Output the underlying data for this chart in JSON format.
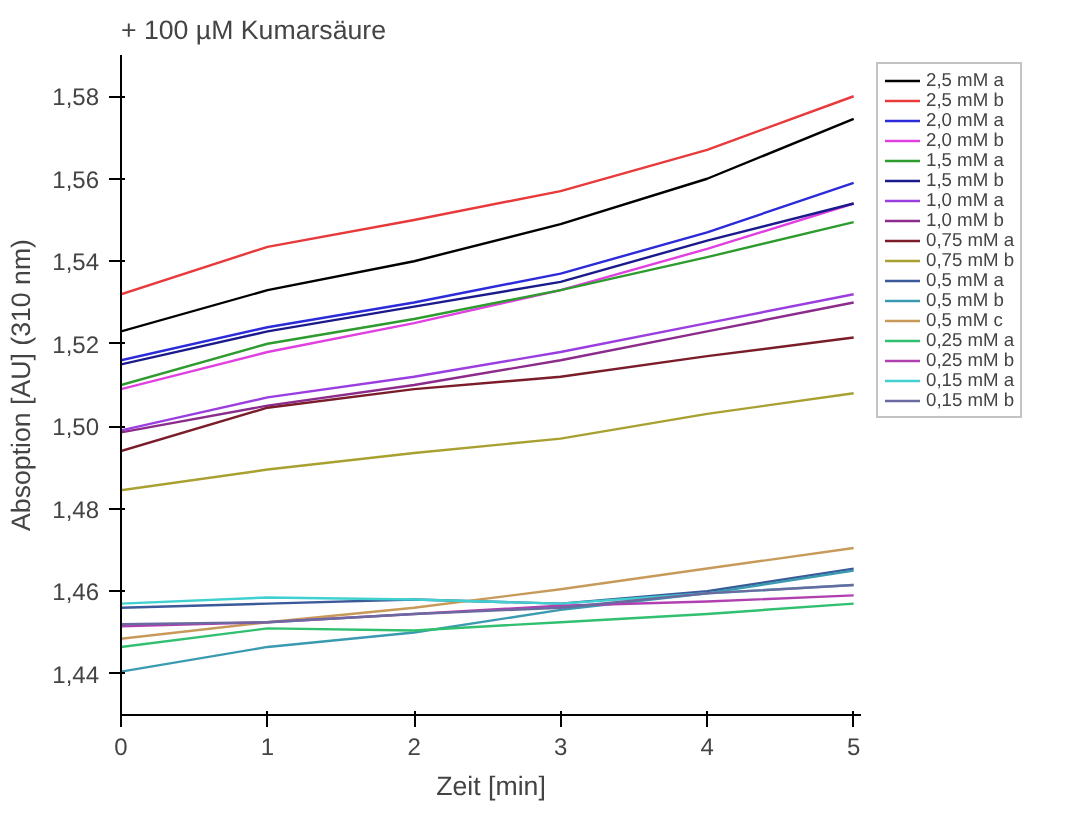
{
  "chart_data": {
    "type": "line",
    "title": "+ 100 µM Kumarsäure",
    "xlabel": "Zeit [min]",
    "ylabel": "Absoption [AU] (310 nm)",
    "x": [
      0,
      1,
      2,
      3,
      4,
      5
    ],
    "xlim": [
      0,
      5.05
    ],
    "xticks": [
      0,
      1,
      2,
      3,
      4,
      5
    ],
    "ylim": [
      1.43,
      1.59
    ],
    "yticks": [
      {
        "value": 1.44,
        "label": "1,44"
      },
      {
        "value": 1.46,
        "label": "1,46"
      },
      {
        "value": 1.48,
        "label": "1,48"
      },
      {
        "value": 1.5,
        "label": "1,50"
      },
      {
        "value": 1.52,
        "label": "1,52"
      },
      {
        "value": 1.54,
        "label": "1,54"
      },
      {
        "value": 1.56,
        "label": "1,56"
      },
      {
        "value": 1.58,
        "label": "1,58"
      }
    ],
    "grid": false,
    "legend": "right",
    "marker": "none",
    "line_style": "solid",
    "series": [
      {
        "name": "2,5 mM a",
        "color": "#000000",
        "values": [
          1.523,
          1.533,
          1.54,
          1.549,
          1.56,
          1.5745
        ]
      },
      {
        "name": "2,5 mM b",
        "color": "#e8393b",
        "values": [
          1.532,
          1.5435,
          1.55,
          1.557,
          1.567,
          1.58
        ]
      },
      {
        "name": "2,0 mM a",
        "color": "#2b2bd9",
        "values": [
          1.516,
          1.524,
          1.53,
          1.537,
          1.547,
          1.559
        ]
      },
      {
        "name": "2,0 mM b",
        "color": "#e040e0",
        "values": [
          1.509,
          1.518,
          1.525,
          1.533,
          1.543,
          1.554
        ]
      },
      {
        "name": "1,5 mM a",
        "color": "#2e9b2e",
        "values": [
          1.51,
          1.52,
          1.526,
          1.533,
          1.541,
          1.5495
        ]
      },
      {
        "name": "1,5 mM b",
        "color": "#1a1a8c",
        "values": [
          1.515,
          1.523,
          1.529,
          1.535,
          1.545,
          1.554
        ]
      },
      {
        "name": "1,0 mM a",
        "color": "#9b3ee0",
        "values": [
          1.499,
          1.507,
          1.512,
          1.518,
          1.525,
          1.532
        ]
      },
      {
        "name": "1,0 mM b",
        "color": "#8b2b8b",
        "values": [
          1.4985,
          1.505,
          1.51,
          1.516,
          1.523,
          1.53
        ]
      },
      {
        "name": "0,75 mM a",
        "color": "#7a1c2a",
        "values": [
          1.494,
          1.5045,
          1.509,
          1.512,
          1.517,
          1.5215
        ]
      },
      {
        "name": "0,75 mM b",
        "color": "#a8a030",
        "values": [
          1.4845,
          1.4895,
          1.4935,
          1.497,
          1.503,
          1.508
        ]
      },
      {
        "name": "0,5 mM a",
        "color": "#3a5a9a",
        "values": [
          1.456,
          1.457,
          1.458,
          1.457,
          1.46,
          1.4655
        ]
      },
      {
        "name": "0,5 mM b",
        "color": "#3a9ab0",
        "values": [
          1.4405,
          1.4465,
          1.45,
          1.4555,
          1.4595,
          1.465
        ]
      },
      {
        "name": "0,5 mM c",
        "color": "#c89a5a",
        "values": [
          1.4485,
          1.4525,
          1.456,
          1.4605,
          1.4655,
          1.4705
        ]
      },
      {
        "name": "0,25 mM a",
        "color": "#30c070",
        "values": [
          1.4465,
          1.451,
          1.4505,
          1.4525,
          1.4545,
          1.457
        ]
      },
      {
        "name": "0,25 mM b",
        "color": "#b040b0",
        "values": [
          1.4515,
          1.4525,
          1.4545,
          1.4565,
          1.4575,
          1.459
        ]
      },
      {
        "name": "0,15 mM a",
        "color": "#40d0d0",
        "values": [
          1.457,
          1.4585,
          1.458,
          1.457,
          1.4595,
          1.4615
        ]
      },
      {
        "name": "0,15 mM b",
        "color": "#6a6aa0",
        "values": [
          1.452,
          1.4525,
          1.4545,
          1.456,
          1.4595,
          1.4615
        ]
      }
    ]
  }
}
